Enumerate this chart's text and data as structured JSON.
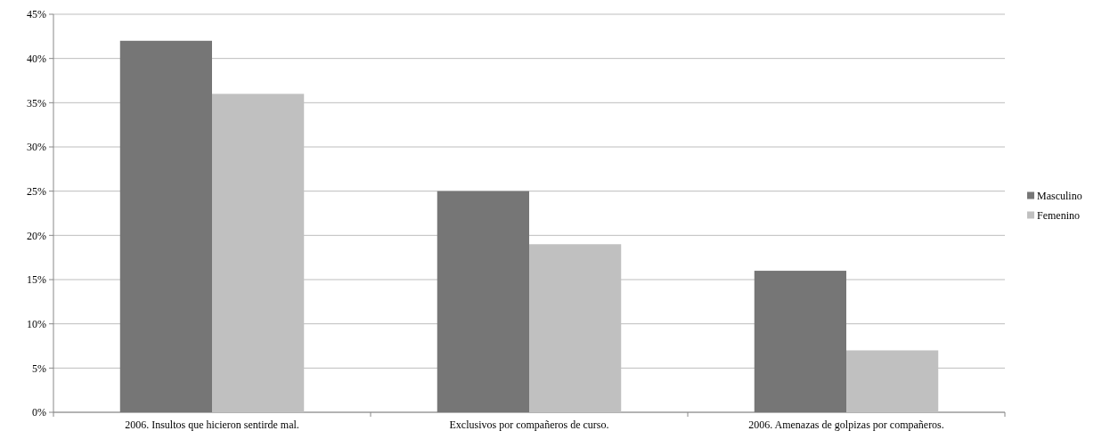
{
  "chart_data": {
    "type": "bar",
    "categories": [
      "2006. Insultos que hicieron sentirde mal.",
      "Exclusivos por compañeros de curso.",
      "2006. Amenazas de golpizas por compañeros."
    ],
    "series": [
      {
        "name": "Masculino",
        "color": "#767676",
        "values": [
          42,
          25,
          16
        ]
      },
      {
        "name": "Femenino",
        "color": "#c0c0c0",
        "values": [
          36,
          19,
          7
        ]
      }
    ],
    "ylim": [
      0,
      45
    ],
    "yticks": [
      {
        "value": 0,
        "label": "0%"
      },
      {
        "value": 5,
        "label": "5%"
      },
      {
        "value": 10,
        "label": "10%"
      },
      {
        "value": 15,
        "label": "15%"
      },
      {
        "value": 20,
        "label": "20%"
      },
      {
        "value": 25,
        "label": "25%"
      },
      {
        "value": 30,
        "label": "30%"
      },
      {
        "value": 35,
        "label": "35%"
      },
      {
        "value": 40,
        "label": "40%"
      },
      {
        "value": 45,
        "label": "45%"
      }
    ],
    "grid": "y",
    "legend": "right"
  }
}
